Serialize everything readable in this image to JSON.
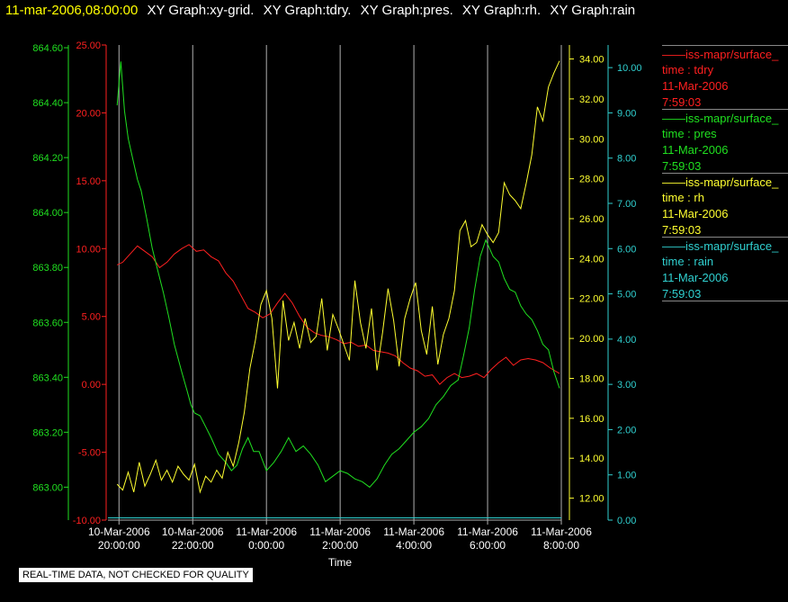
{
  "title": {
    "timestamp": "11-mar-2006,08:00:00",
    "graphs": [
      "XY Graph:xy-grid.",
      "XY Graph:tdry.",
      "XY Graph:pres.",
      "XY Graph:rh.",
      "XY Graph:rain"
    ]
  },
  "colors": {
    "tdry": "#ff2020",
    "pres": "#20e020",
    "rh": "#ffff30",
    "rain": "#30d0d0",
    "grid": "#b0b0b0",
    "time_title": "#ffff00"
  },
  "legend": [
    {
      "series": "tdry",
      "name": "iss-mapr/surface_",
      "field": "time : tdry",
      "date": "11-Mar-2006",
      "time": "7:59:03"
    },
    {
      "series": "pres",
      "name": "iss-mapr/surface_",
      "field": "time : pres",
      "date": "11-Mar-2006",
      "time": "7:59:03"
    },
    {
      "series": "rh",
      "name": "iss-mapr/surface_",
      "field": "time : rh",
      "date": "11-Mar-2006",
      "time": "7:59:03"
    },
    {
      "series": "rain",
      "name": "iss-mapr/surface_",
      "field": "time : rain",
      "date": "11-Mar-2006",
      "time": "7:59:03"
    }
  ],
  "notice": "REAL-TIME DATA, NOT CHECKED FOR QUALITY",
  "chart_data": {
    "type": "line",
    "xlabel": "Time",
    "x_ticks": [
      {
        "hour": 20,
        "date": "10-Mar-2006",
        "time": "20:00:00"
      },
      {
        "hour": 22,
        "date": "10-Mar-2006",
        "time": "22:00:00"
      },
      {
        "hour": 24,
        "date": "11-Mar-2006",
        "time": "0:00:00"
      },
      {
        "hour": 26,
        "date": "11-Mar-2006",
        "time": "2:00:00"
      },
      {
        "hour": 28,
        "date": "11-Mar-2006",
        "time": "4:00:00"
      },
      {
        "hour": 30,
        "date": "11-Mar-2006",
        "time": "6:00:00"
      },
      {
        "hour": 32,
        "date": "11-Mar-2006",
        "time": "8:00:00"
      }
    ],
    "xlim": [
      19.7,
      32.0
    ],
    "grid": "vertical",
    "axes": {
      "pres": {
        "ylim": [
          862.88,
          864.61
        ],
        "ticks": [
          "863.00",
          "863.20",
          "863.40",
          "863.60",
          "863.80",
          "864.00",
          "864.20",
          "864.40",
          "864.60"
        ]
      },
      "tdry": {
        "ylim": [
          -10,
          25
        ],
        "ticks": [
          "-10.00",
          "-5.00",
          "0.00",
          "5.00",
          "10.00",
          "15.00",
          "20.00",
          "25.00"
        ]
      },
      "rh": {
        "ylim": [
          10.9,
          34.7
        ],
        "ticks": [
          "12.00",
          "14.00",
          "16.00",
          "18.00",
          "20.00",
          "22.00",
          "24.00",
          "26.00",
          "28.00",
          "30.00",
          "32.00",
          "34.00"
        ]
      },
      "rain": {
        "ylim": [
          0,
          10.5
        ],
        "ticks": [
          "0.00",
          "1.00",
          "2.00",
          "3.00",
          "4.00",
          "5.00",
          "6.00",
          "7.00",
          "8.00",
          "9.00",
          "10.00"
        ]
      }
    },
    "series": [
      {
        "key": "tdry",
        "x": [
          19.95,
          20.1,
          20.3,
          20.5,
          20.7,
          20.9,
          21.1,
          21.3,
          21.5,
          21.7,
          21.9,
          22.1,
          22.3,
          22.5,
          22.7,
          22.9,
          23.1,
          23.3,
          23.5,
          23.7,
          23.9,
          24.1,
          24.3,
          24.5,
          24.7,
          24.9,
          25.1,
          25.3,
          25.5,
          25.7,
          25.9,
          26.1,
          26.3,
          26.5,
          26.7,
          26.9,
          27.1,
          27.3,
          27.5,
          27.7,
          27.9,
          28.1,
          28.3,
          28.5,
          28.7,
          28.9,
          29.1,
          29.3,
          29.5,
          29.7,
          29.9,
          30.1,
          30.3,
          30.5,
          30.7,
          30.9,
          31.1,
          31.3,
          31.5,
          31.7,
          31.95
        ],
        "y": [
          8.8,
          9.0,
          9.6,
          10.2,
          9.8,
          9.4,
          8.6,
          9.0,
          9.6,
          10.0,
          10.3,
          9.8,
          9.9,
          9.4,
          9.1,
          8.2,
          7.6,
          6.6,
          5.6,
          5.3,
          4.9,
          5.2,
          6.0,
          6.7,
          6.0,
          5.0,
          4.2,
          3.8,
          3.6,
          3.5,
          3.3,
          3.0,
          3.1,
          2.8,
          2.9,
          2.5,
          2.4,
          2.3,
          2.1,
          1.6,
          1.2,
          1.0,
          0.6,
          0.7,
          0.0,
          0.5,
          0.8,
          0.5,
          0.6,
          0.8,
          0.5,
          1.1,
          1.6,
          2.0,
          1.4,
          1.8,
          1.9,
          1.8,
          1.6,
          1.2,
          0.8
        ]
      },
      {
        "key": "pres",
        "x": [
          19.95,
          20.05,
          20.15,
          20.25,
          20.35,
          20.5,
          20.6,
          20.75,
          20.9,
          21.05,
          21.2,
          21.35,
          21.5,
          21.7,
          21.85,
          21.95,
          22.05,
          22.2,
          22.35,
          22.5,
          22.7,
          22.9,
          23.05,
          23.2,
          23.35,
          23.5,
          23.65,
          23.8,
          24.0,
          24.2,
          24.4,
          24.6,
          24.8,
          25.0,
          25.2,
          25.4,
          25.6,
          25.8,
          26.0,
          26.2,
          26.4,
          26.6,
          26.8,
          27.0,
          27.2,
          27.4,
          27.6,
          27.8,
          28.0,
          28.2,
          28.4,
          28.6,
          28.8,
          29.0,
          29.2,
          29.35,
          29.5,
          29.65,
          29.8,
          29.95,
          30.05,
          30.15,
          30.3,
          30.45,
          30.6,
          30.75,
          30.9,
          31.05,
          31.2,
          31.35,
          31.5,
          31.65,
          31.8,
          31.95
        ],
        "y": [
          864.39,
          864.55,
          864.37,
          864.27,
          864.21,
          864.12,
          864.08,
          863.98,
          863.87,
          863.79,
          863.71,
          863.62,
          863.52,
          863.42,
          863.35,
          863.3,
          863.27,
          863.26,
          863.22,
          863.18,
          863.12,
          863.09,
          863.06,
          863.08,
          863.14,
          863.18,
          863.13,
          863.13,
          863.06,
          863.09,
          863.13,
          863.18,
          863.13,
          863.15,
          863.12,
          863.08,
          863.02,
          863.04,
          863.06,
          863.05,
          863.03,
          863.02,
          863.0,
          863.03,
          863.08,
          863.12,
          863.14,
          863.17,
          863.2,
          863.22,
          863.25,
          863.3,
          863.33,
          863.37,
          863.39,
          863.48,
          863.58,
          863.72,
          863.84,
          863.9,
          863.87,
          863.84,
          863.82,
          863.76,
          863.72,
          863.71,
          863.66,
          863.63,
          863.61,
          863.57,
          863.52,
          863.5,
          863.42,
          863.36
        ]
      },
      {
        "key": "rh",
        "x": [
          19.95,
          20.1,
          20.25,
          20.4,
          20.55,
          20.7,
          20.85,
          21.0,
          21.15,
          21.3,
          21.45,
          21.6,
          21.75,
          21.9,
          22.05,
          22.2,
          22.35,
          22.5,
          22.65,
          22.8,
          22.95,
          23.1,
          23.25,
          23.4,
          23.55,
          23.7,
          23.85,
          24.0,
          24.15,
          24.3,
          24.45,
          24.6,
          24.75,
          24.9,
          25.05,
          25.2,
          25.35,
          25.5,
          25.65,
          25.8,
          25.95,
          26.1,
          26.25,
          26.4,
          26.55,
          26.7,
          26.85,
          27.0,
          27.15,
          27.3,
          27.45,
          27.6,
          27.75,
          27.9,
          28.05,
          28.2,
          28.35,
          28.5,
          28.65,
          28.8,
          28.95,
          29.1,
          29.25,
          29.4,
          29.55,
          29.7,
          29.85,
          30.0,
          30.15,
          30.3,
          30.45,
          30.6,
          30.75,
          30.9,
          31.05,
          31.2,
          31.35,
          31.5,
          31.65,
          31.8,
          31.95
        ],
        "y": [
          12.7,
          12.4,
          13.3,
          12.3,
          13.8,
          12.6,
          13.2,
          13.9,
          12.9,
          13.4,
          12.8,
          13.6,
          13.2,
          12.9,
          13.7,
          12.3,
          13.1,
          12.8,
          13.4,
          13.0,
          14.3,
          13.6,
          14.8,
          16.3,
          18.5,
          19.9,
          21.7,
          22.4,
          21.0,
          17.5,
          21.9,
          19.9,
          20.8,
          19.5,
          21.0,
          19.8,
          20.1,
          22.0,
          19.4,
          21.2,
          20.5,
          19.7,
          18.9,
          22.9,
          20.8,
          19.5,
          21.5,
          18.4,
          20.3,
          22.5,
          20.9,
          18.6,
          21.0,
          22.0,
          22.8,
          20.4,
          19.2,
          21.6,
          18.7,
          20.2,
          21.0,
          22.4,
          25.4,
          25.9,
          24.6,
          24.8,
          25.7,
          25.2,
          24.8,
          25.3,
          27.8,
          27.2,
          26.9,
          26.5,
          27.8,
          29.2,
          31.6,
          30.9,
          32.6,
          33.3,
          33.9
        ]
      },
      {
        "key": "rain",
        "x": [
          19.7,
          32.0
        ],
        "y": [
          0.05,
          0.05
        ]
      }
    ]
  }
}
